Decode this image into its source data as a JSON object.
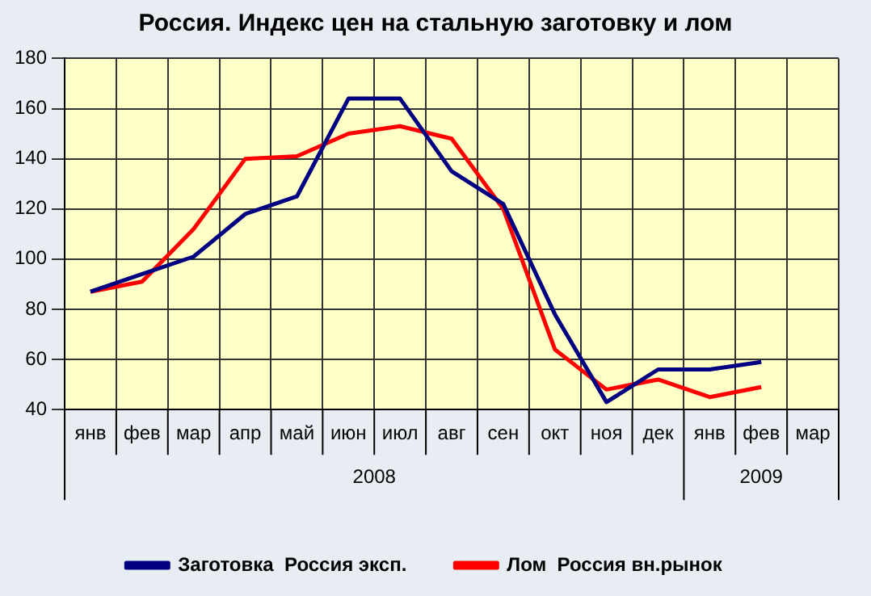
{
  "chart_data": {
    "type": "line",
    "title": "Россия. Индекс цен  на стальную заготовку и лом",
    "categories": [
      "янв",
      "фев",
      "мар",
      "апр",
      "май",
      "июн",
      "июл",
      "авг",
      "сен",
      "окт",
      "ноя",
      "дек",
      "янв",
      "фев",
      "мар"
    ],
    "series": [
      {
        "name": "Заготовка  Россия эксп.",
        "color": "#000080",
        "values": [
          87,
          94,
          101,
          118,
          125,
          164,
          164,
          135,
          122,
          78,
          43,
          56,
          56,
          59,
          null
        ]
      },
      {
        "name": "Лом  Россия вн.рынок",
        "color": "#ff0000",
        "values": [
          87,
          91,
          112,
          140,
          141,
          150,
          153,
          148,
          120,
          64,
          48,
          52,
          45,
          49,
          null
        ]
      }
    ],
    "annotations": [
      "2008",
      "2009"
    ],
    "ylim": [
      40,
      180
    ],
    "yticks": [
      40,
      60,
      80,
      100,
      120,
      140,
      160,
      180
    ],
    "grid": true,
    "legend": "bottom",
    "marker": "none",
    "line_style": "solid"
  }
}
